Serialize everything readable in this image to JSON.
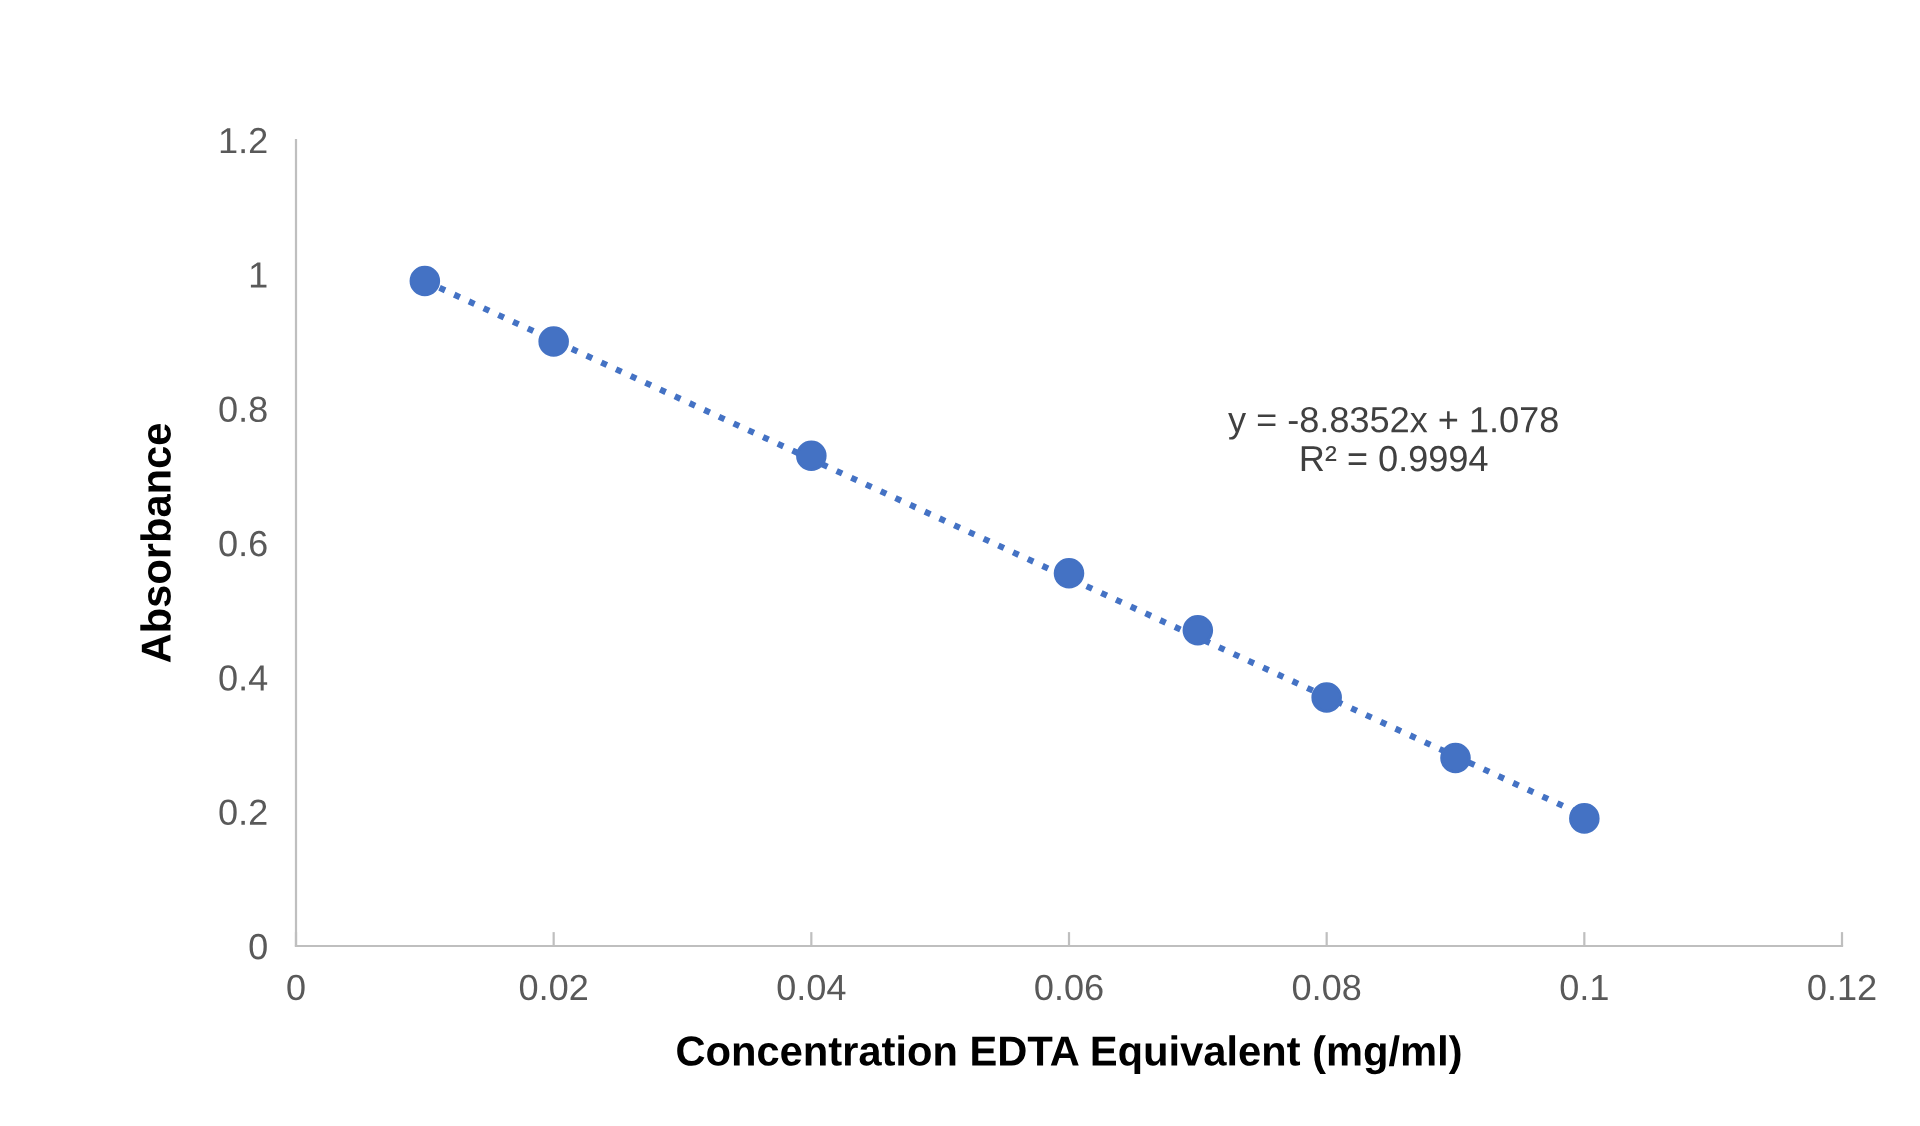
{
  "chart_data": {
    "type": "scatter",
    "xlabel": "Concentration EDTA Equivalent (mg/ml)",
    "ylabel": "Absorbance",
    "xlim": [
      0,
      0.12
    ],
    "xticks": [
      0,
      0.02,
      0.04,
      0.06,
      0.08,
      0.1,
      0.12
    ],
    "ylim": [
      0,
      1.2
    ],
    "yticks": [
      0,
      0.2,
      0.4,
      0.6,
      0.8,
      1,
      1.2
    ],
    "grid": false,
    "legend": false,
    "series": [
      {
        "color": "#4472c4",
        "marker": "circle",
        "x": [
          0.01,
          0.02,
          0.04,
          0.06,
          0.07,
          0.08,
          0.09,
          0.1
        ],
        "values": [
          0.99,
          0.9,
          0.73,
          0.555,
          0.47,
          0.37,
          0.28,
          0.19
        ]
      },
      {
        "type": "line",
        "color": "#4472c4",
        "line_style": "dotted",
        "x": [
          0.01,
          0.1
        ],
        "values": [
          0.99,
          0.194
        ]
      }
    ],
    "annotations": [
      "y = -8.8352x + 1.078\nR² = 0.9994"
    ]
  }
}
